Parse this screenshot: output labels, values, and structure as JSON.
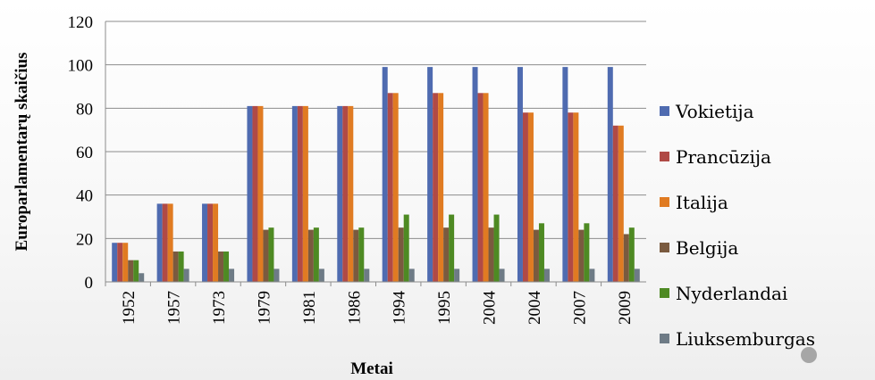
{
  "chart_data": {
    "type": "bar",
    "xlabel": "Metai",
    "ylabel": "Europarlamentarų skaičius",
    "ylim": [
      0,
      120
    ],
    "yticks": [
      0,
      20,
      40,
      60,
      80,
      100,
      120
    ],
    "grid": true,
    "legend": "right",
    "categories": [
      "1952",
      "1957",
      "1973",
      "1979",
      "1981",
      "1986",
      "1994",
      "1995",
      "2004",
      "2004",
      "2007",
      "2009"
    ],
    "series": [
      {
        "name": "Vokietija",
        "color": "#4f6bb0",
        "values": [
          18,
          36,
          36,
          81,
          81,
          81,
          99,
          99,
          99,
          99,
          99,
          99
        ]
      },
      {
        "name": "Prancūzija",
        "color": "#b04a46",
        "values": [
          18,
          36,
          36,
          81,
          81,
          81,
          87,
          87,
          87,
          78,
          78,
          72
        ]
      },
      {
        "name": "Italija",
        "color": "#e07b22",
        "values": [
          18,
          36,
          36,
          81,
          81,
          81,
          87,
          87,
          87,
          78,
          78,
          72
        ]
      },
      {
        "name": "Belgija",
        "color": "#7a5a3f",
        "values": [
          10,
          14,
          14,
          24,
          24,
          24,
          25,
          25,
          25,
          24,
          24,
          22
        ]
      },
      {
        "name": "Nyderlandai",
        "color": "#4e8a23",
        "values": [
          10,
          14,
          14,
          25,
          25,
          25,
          31,
          31,
          31,
          27,
          27,
          25
        ]
      },
      {
        "name": "Liuksemburgas",
        "color": "#6e7b86",
        "values": [
          4,
          6,
          6,
          6,
          6,
          6,
          6,
          6,
          6,
          6,
          6,
          6
        ]
      }
    ]
  }
}
